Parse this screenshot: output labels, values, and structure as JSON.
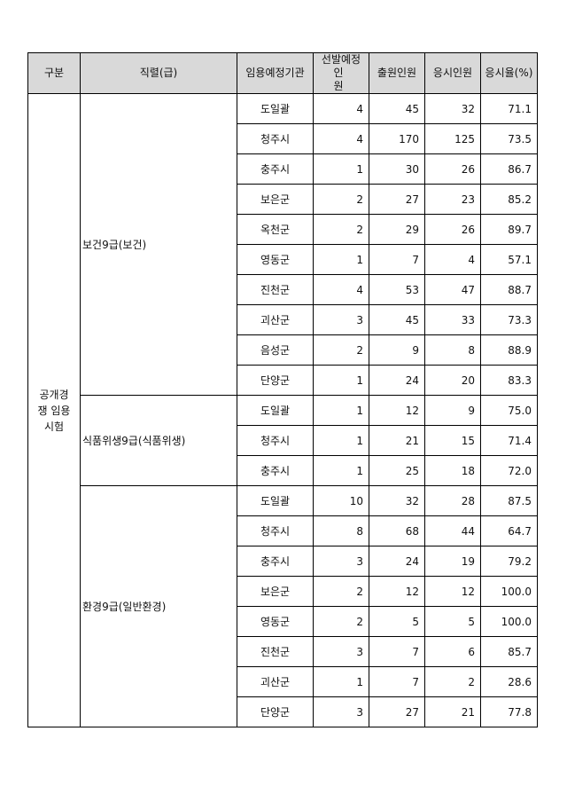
{
  "table": {
    "headers": [
      "구분",
      "직렬(급)",
      "임용예정기관",
      [
        "선발예정",
        "인 원"
      ],
      "출원인원",
      "응시인원",
      "응시율(%)"
    ],
    "category": "공개경쟁 임용시험",
    "groups": [
      {
        "name": "보건9급(보건)",
        "rows": [
          [
            "도일괄",
            4,
            45,
            32,
            "71.1"
          ],
          [
            "청주시",
            4,
            170,
            125,
            "73.5"
          ],
          [
            "충주시",
            1,
            30,
            26,
            "86.7"
          ],
          [
            "보은군",
            2,
            27,
            23,
            "85.2"
          ],
          [
            "옥천군",
            2,
            29,
            26,
            "89.7"
          ],
          [
            "영동군",
            1,
            7,
            4,
            "57.1"
          ],
          [
            "진천군",
            4,
            53,
            47,
            "88.7"
          ],
          [
            "괴산군",
            3,
            45,
            33,
            "73.3"
          ],
          [
            "음성군",
            2,
            9,
            8,
            "88.9"
          ],
          [
            "단양군",
            1,
            24,
            20,
            "83.3"
          ]
        ]
      },
      {
        "name": "식품위생9급(식품위생)",
        "rows": [
          [
            "도일괄",
            1,
            12,
            9,
            "75.0"
          ],
          [
            "청주시",
            1,
            21,
            15,
            "71.4"
          ],
          [
            "충주시",
            1,
            25,
            18,
            "72.0"
          ]
        ]
      },
      {
        "name": "환경9급(일반환경)",
        "rows": [
          [
            "도일괄",
            10,
            32,
            28,
            "87.5"
          ],
          [
            "청주시",
            8,
            68,
            44,
            "64.7"
          ],
          [
            "충주시",
            3,
            24,
            19,
            "79.2"
          ],
          [
            "보은군",
            2,
            12,
            12,
            "100.0"
          ],
          [
            "영동군",
            2,
            5,
            5,
            "100.0"
          ],
          [
            "진천군",
            3,
            7,
            6,
            "85.7"
          ],
          [
            "괴산군",
            1,
            7,
            2,
            "28.6"
          ],
          [
            "단양군",
            3,
            27,
            21,
            "77.8"
          ]
        ]
      }
    ]
  }
}
